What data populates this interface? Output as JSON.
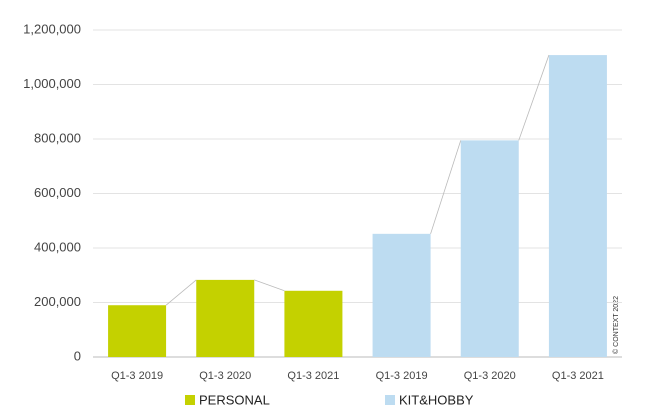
{
  "chart_data": {
    "type": "bar",
    "categories": [
      "Q1-3 2019",
      "Q1-3 2020",
      "Q1-3 2021",
      "Q1-3 2019",
      "Q1-3 2020",
      "Q1-3 2021"
    ],
    "series": [
      {
        "name": "PERSONAL",
        "color": "#c4d100",
        "values": [
          190000,
          283000,
          243000,
          null,
          null,
          null
        ]
      },
      {
        "name": "KIT&HOBBY",
        "color": "#bddcf1",
        "values": [
          null,
          null,
          null,
          452000,
          795000,
          1108000
        ]
      }
    ],
    "ylim": [
      0,
      1200000
    ],
    "yticks": [
      0,
      {
        "value": 200000,
        "label": "200,000"
      },
      {
        "value": 400000,
        "label": "400,000"
      },
      {
        "value": 600000,
        "label": "600,000"
      },
      {
        "value": 800000,
        "label": "800,000"
      },
      {
        "value": 1000000,
        "label": "1,000,000"
      },
      {
        "value": 1200000,
        "label": "1,200,000"
      }
    ],
    "grid": true,
    "annotation": "© CONTEXT 2022"
  }
}
